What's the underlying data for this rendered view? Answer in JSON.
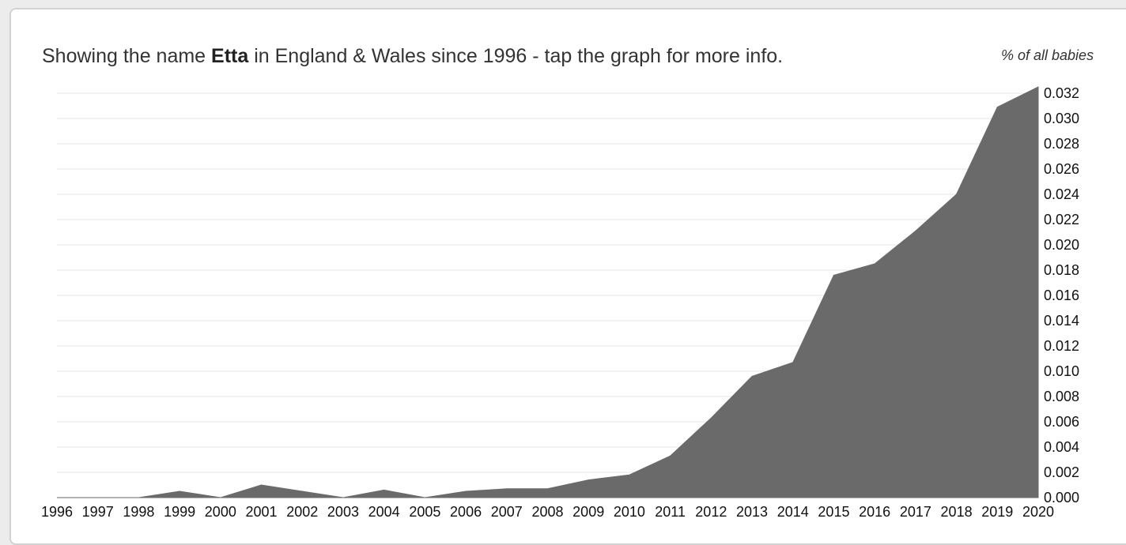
{
  "header": {
    "prefix": "Showing the name ",
    "name": "Etta",
    "suffix": " in England & Wales since 1996 - tap the graph for more info.",
    "unit_label": "% of all babies"
  },
  "colors": {
    "area_fill": "#6a6a6a",
    "grid": "#e6e6e6",
    "card_border": "#d2d2d2"
  },
  "chart_data": {
    "type": "area",
    "title": "Showing the name Etta in England & Wales since 1996 - tap the graph for more info.",
    "ylabel": "% of all babies",
    "xlabel": "",
    "x": [
      1996,
      1997,
      1998,
      1999,
      2000,
      2001,
      2002,
      2003,
      2004,
      2005,
      2006,
      2007,
      2008,
      2009,
      2010,
      2011,
      2012,
      2013,
      2014,
      2015,
      2016,
      2017,
      2018,
      2019,
      2020
    ],
    "values": [
      0.0,
      0.0,
      0.0,
      0.0005,
      0.0,
      0.001,
      0.0005,
      0.0,
      0.0006,
      0.0,
      0.0005,
      0.0007,
      0.0007,
      0.0014,
      0.0018,
      0.0033,
      0.0063,
      0.0096,
      0.0107,
      0.0176,
      0.0185,
      0.0211,
      0.024,
      0.0309,
      0.0325
    ],
    "ylim": [
      0,
      0.032
    ],
    "y_ticks": [
      "0.000",
      "0.002",
      "0.004",
      "0.006",
      "0.008",
      "0.010",
      "0.012",
      "0.014",
      "0.016",
      "0.018",
      "0.020",
      "0.022",
      "0.024",
      "0.026",
      "0.028",
      "0.030",
      "0.032"
    ],
    "x_tick_labels": [
      "1996",
      "1997",
      "1998",
      "1999",
      "2000",
      "2001",
      "2002",
      "2003",
      "2004",
      "2005",
      "2006",
      "2007",
      "2008",
      "2009",
      "2010",
      "2011",
      "2012",
      "2013",
      "2014",
      "2015",
      "2016",
      "2017",
      "2018",
      "2019",
      "2020"
    ],
    "y_axis_side": "right",
    "grid": true,
    "legend": false
  }
}
